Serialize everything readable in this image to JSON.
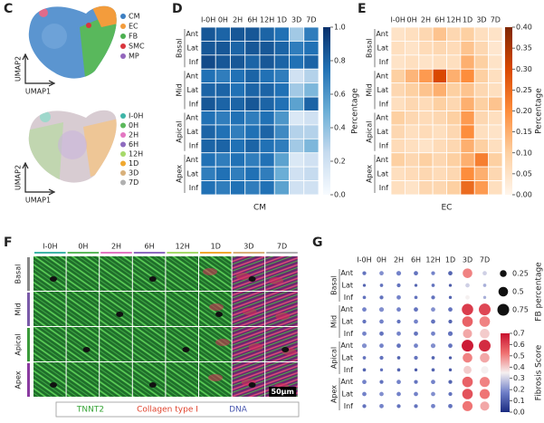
{
  "panel_c": {
    "label": "C",
    "x_label": "UMAP1",
    "y_label": "UMAP2",
    "cell_types": [
      {
        "name": "CM",
        "color": "#3d7fc2"
      },
      {
        "name": "EC",
        "color": "#f39c3c"
      },
      {
        "name": "FB",
        "color": "#4caf50"
      },
      {
        "name": "SMC",
        "color": "#d9363e"
      },
      {
        "name": "MP",
        "color": "#9467bd"
      }
    ],
    "timepoints": [
      {
        "name": "I-0H",
        "color": "#3fb5a8"
      },
      {
        "name": "0H",
        "color": "#5cb85c"
      },
      {
        "name": "2H",
        "color": "#e377c2"
      },
      {
        "name": "6H",
        "color": "#8e6bbf"
      },
      {
        "name": "12H",
        "color": "#a6d96a"
      },
      {
        "name": "1D",
        "color": "#f0a830"
      },
      {
        "name": "3D",
        "color": "#d8b07a"
      },
      {
        "name": "7D",
        "color": "#b0b0b0"
      }
    ]
  },
  "panel_f": {
    "label": "F",
    "rows": [
      "Basal",
      "Mid",
      "Apical",
      "Apex"
    ],
    "stains": [
      {
        "name": "TNNT2",
        "color": "#3aa63a"
      },
      {
        "name": "Collagen type I",
        "color": "#e0402a"
      },
      {
        "name": "DNA",
        "color": "#4a58b0"
      }
    ],
    "scale_bar": "50μm"
  },
  "chart_data": [
    {
      "type": "heatmap",
      "label": "D",
      "xlabel": "CM",
      "clabel": "Percentage",
      "columns": [
        "I-0H",
        "0H",
        "2H",
        "6H",
        "12H",
        "1D",
        "3D",
        "7D"
      ],
      "groups": [
        "Basal",
        "Mid",
        "Apical",
        "Apex"
      ],
      "subrows": [
        "Ant",
        "Lat",
        "Inf"
      ],
      "colormap": [
        "#f7fbff",
        "#c6dbef",
        "#6baed6",
        "#2171b5",
        "#08306b"
      ],
      "clim": [
        0,
        1
      ],
      "cticks": [
        {
          "value": 0,
          "label": "0.0"
        },
        0.2,
        0.4,
        0.6,
        0.8,
        {
          "value": 1,
          "label": "1.0"
        }
      ],
      "values": [
        [
          0.85,
          0.8,
          0.85,
          0.85,
          0.8,
          0.75,
          0.35,
          0.7
        ],
        [
          0.85,
          0.85,
          0.8,
          0.85,
          0.85,
          0.8,
          0.7,
          0.75
        ],
        [
          0.9,
          0.85,
          0.85,
          0.8,
          0.85,
          0.8,
          0.75,
          0.8
        ],
        [
          0.75,
          0.7,
          0.75,
          0.8,
          0.75,
          0.7,
          0.2,
          0.3
        ],
        [
          0.8,
          0.8,
          0.75,
          0.8,
          0.8,
          0.75,
          0.35,
          0.45
        ],
        [
          0.85,
          0.8,
          0.8,
          0.85,
          0.8,
          0.75,
          0.55,
          0.8
        ],
        [
          0.75,
          0.7,
          0.75,
          0.7,
          0.75,
          0.6,
          0.15,
          0.2
        ],
        [
          0.8,
          0.75,
          0.7,
          0.75,
          0.8,
          0.65,
          0.3,
          0.3
        ],
        [
          0.8,
          0.8,
          0.75,
          0.8,
          0.75,
          0.7,
          0.35,
          0.45
        ],
        [
          0.75,
          0.7,
          0.75,
          0.7,
          0.75,
          0.55,
          0.15,
          0.2
        ],
        [
          0.7,
          0.75,
          0.7,
          0.75,
          0.7,
          0.5,
          0.2,
          0.25
        ],
        [
          0.75,
          0.7,
          0.75,
          0.7,
          0.75,
          0.55,
          0.2,
          0.2
        ]
      ]
    },
    {
      "type": "heatmap",
      "label": "E",
      "xlabel": "EC",
      "clabel": "Percentage",
      "columns": [
        "I-0H",
        "0H",
        "2H",
        "6H",
        "12H",
        "1D",
        "3D",
        "7D"
      ],
      "groups": [
        "Basal",
        "Mid",
        "Apical",
        "Apex"
      ],
      "subrows": [
        "Ant",
        "Lat",
        "Inf"
      ],
      "colormap": [
        "#fff5eb",
        "#fdd0a2",
        "#fd8d3c",
        "#d94801",
        "#7f2704"
      ],
      "clim": [
        0,
        0.4
      ],
      "cticks": [
        {
          "value": 0,
          "label": "0.00"
        },
        0.05,
        {
          "value": 0.1,
          "label": "0.10"
        },
        0.15,
        {
          "value": 0.2,
          "label": "0.20"
        },
        0.25,
        {
          "value": 0.3,
          "label": "0.30"
        },
        0.35,
        {
          "value": 0.4,
          "label": "0.40"
        }
      ],
      "values": [
        [
          0.05,
          0.06,
          0.08,
          0.12,
          0.08,
          0.1,
          0.06,
          0.05
        ],
        [
          0.06,
          0.05,
          0.07,
          0.08,
          0.07,
          0.12,
          0.08,
          0.04
        ],
        [
          0.05,
          0.06,
          0.05,
          0.06,
          0.06,
          0.15,
          0.1,
          0.05
        ],
        [
          0.1,
          0.14,
          0.18,
          0.3,
          0.15,
          0.2,
          0.1,
          0.06
        ],
        [
          0.08,
          0.1,
          0.12,
          0.15,
          0.1,
          0.12,
          0.08,
          0.06
        ],
        [
          0.06,
          0.08,
          0.07,
          0.1,
          0.08,
          0.15,
          0.1,
          0.12
        ],
        [
          0.1,
          0.08,
          0.07,
          0.08,
          0.1,
          0.18,
          0.08,
          0.06
        ],
        [
          0.08,
          0.06,
          0.07,
          0.06,
          0.08,
          0.2,
          0.06,
          0.05
        ],
        [
          0.07,
          0.06,
          0.05,
          0.07,
          0.08,
          0.15,
          0.1,
          0.06
        ],
        [
          0.1,
          0.08,
          0.1,
          0.08,
          0.1,
          0.15,
          0.22,
          0.1
        ],
        [
          0.06,
          0.07,
          0.08,
          0.07,
          0.08,
          0.2,
          0.15,
          0.08
        ],
        [
          0.06,
          0.05,
          0.08,
          0.08,
          0.1,
          0.25,
          0.18,
          0.06
        ]
      ]
    },
    {
      "type": "dotplot",
      "label": "G",
      "clabel": "Fibrosis Score",
      "size_title": "FB percentage",
      "size_ticks": [
        0.25,
        0.5,
        0.75
      ],
      "columns": [
        "I-0H",
        "0H",
        "2H",
        "6H",
        "12H",
        "1D",
        "3D",
        "7D"
      ],
      "groups": [
        "Basal",
        "Mid",
        "Apical",
        "Apex"
      ],
      "subrows": [
        "Ant",
        "Lat",
        "Inf"
      ],
      "colormap": [
        "#1a2b80",
        "#6f7fc8",
        "#f5f0f0",
        "#ef7070",
        "#c8102e"
      ],
      "clim": [
        0,
        0.7
      ],
      "cticks": [
        {
          "value": 0,
          "label": "0.0"
        },
        0.1,
        0.2,
        0.3,
        0.4,
        0.5,
        0.6,
        0.7
      ],
      "size": [
        [
          0.08,
          0.1,
          0.12,
          0.1,
          0.08,
          0.1,
          0.5,
          0.1
        ],
        [
          0.05,
          0.06,
          0.08,
          0.05,
          0.06,
          0.05,
          0.1,
          0.06
        ],
        [
          0.06,
          0.08,
          0.1,
          0.06,
          0.08,
          0.05,
          0.1,
          0.05
        ],
        [
          0.1,
          0.12,
          0.1,
          0.1,
          0.1,
          0.1,
          0.7,
          0.75
        ],
        [
          0.08,
          0.1,
          0.08,
          0.1,
          0.1,
          0.08,
          0.6,
          0.6
        ],
        [
          0.1,
          0.1,
          0.1,
          0.1,
          0.1,
          0.12,
          0.45,
          0.5
        ],
        [
          0.12,
          0.1,
          0.1,
          0.1,
          0.12,
          0.1,
          0.75,
          0.75
        ],
        [
          0.06,
          0.08,
          0.06,
          0.08,
          0.06,
          0.05,
          0.5,
          0.5
        ],
        [
          0.06,
          0.05,
          0.06,
          0.05,
          0.06,
          0.05,
          0.35,
          0.3
        ],
        [
          0.1,
          0.08,
          0.1,
          0.08,
          0.1,
          0.08,
          0.6,
          0.55
        ],
        [
          0.1,
          0.1,
          0.1,
          0.1,
          0.1,
          0.08,
          0.6,
          0.55
        ],
        [
          0.08,
          0.1,
          0.08,
          0.08,
          0.1,
          0.1,
          0.55,
          0.45
        ]
      ],
      "score": [
        [
          0.15,
          0.2,
          0.18,
          0.15,
          0.18,
          0.12,
          0.5,
          0.3
        ],
        [
          0.12,
          0.15,
          0.15,
          0.12,
          0.15,
          0.1,
          0.3,
          0.25
        ],
        [
          0.15,
          0.15,
          0.18,
          0.15,
          0.15,
          0.12,
          0.35,
          0.25
        ],
        [
          0.18,
          0.2,
          0.18,
          0.15,
          0.2,
          0.15,
          0.62,
          0.6
        ],
        [
          0.15,
          0.18,
          0.15,
          0.18,
          0.15,
          0.12,
          0.55,
          0.5
        ],
        [
          0.18,
          0.15,
          0.18,
          0.15,
          0.18,
          0.15,
          0.45,
          0.4
        ],
        [
          0.2,
          0.18,
          0.15,
          0.18,
          0.2,
          0.15,
          0.68,
          0.65
        ],
        [
          0.15,
          0.15,
          0.12,
          0.15,
          0.12,
          0.1,
          0.5,
          0.45
        ],
        [
          0.12,
          0.15,
          0.12,
          0.1,
          0.12,
          0.1,
          0.4,
          0.35
        ],
        [
          0.18,
          0.15,
          0.18,
          0.15,
          0.18,
          0.12,
          0.55,
          0.5
        ],
        [
          0.18,
          0.2,
          0.18,
          0.18,
          0.2,
          0.15,
          0.58,
          0.52
        ],
        [
          0.15,
          0.18,
          0.15,
          0.15,
          0.18,
          0.15,
          0.52,
          0.45
        ]
      ]
    }
  ]
}
